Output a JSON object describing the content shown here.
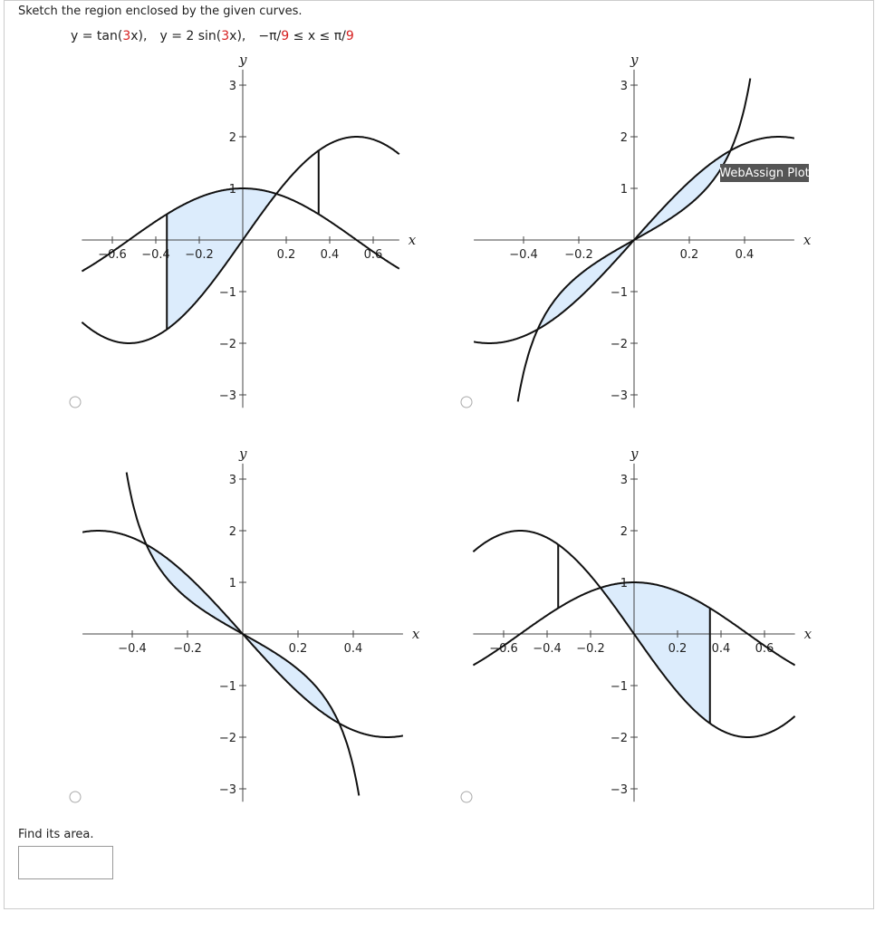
{
  "prompt": "Sketch the region enclosed by the given curves.",
  "equation": [
    "y = tan(",
    "3",
    "x),",
    "y = 2 sin(",
    "3",
    "x),",
    "−π/",
    "9",
    " ≤ x ≤ π/",
    "9"
  ],
  "plots": [
    {
      "x_label": "x",
      "y_label": "y",
      "xticks": [
        {
          "value": -0.6,
          "label": "−0.6"
        },
        {
          "value": -0.4,
          "label": "−0.4"
        },
        {
          "value": -0.2,
          "label": "−0.2"
        },
        0.2,
        0.4,
        0.6
      ],
      "yticks": [
        {
          "value": -3,
          "label": "−3"
        },
        {
          "value": -2,
          "label": "−2"
        },
        {
          "value": -1,
          "label": "−1"
        },
        1,
        2,
        3
      ]
    },
    {
      "x_label": "x",
      "y_label": "y",
      "xticks": [
        {
          "value": -0.4,
          "label": "−0.4"
        },
        {
          "value": -0.2,
          "label": "−0.2"
        },
        0.2,
        0.4
      ],
      "yticks": [
        {
          "value": -3,
          "label": "−3"
        },
        {
          "value": -2,
          "label": "−2"
        },
        {
          "value": -1,
          "label": "−1"
        },
        1,
        2,
        3
      ]
    },
    {
      "x_label": "x",
      "y_label": "y",
      "xticks": [
        {
          "value": -0.4,
          "label": "−0.4"
        },
        {
          "value": -0.2,
          "label": "−0.2"
        },
        0.2,
        0.4
      ],
      "yticks": [
        {
          "value": -3,
          "label": "−3"
        },
        {
          "value": -2,
          "label": "−2"
        },
        {
          "value": -1,
          "label": "−1"
        },
        1,
        2,
        3
      ]
    },
    {
      "x_label": "x",
      "y_label": "y",
      "xticks": [
        {
          "value": -0.6,
          "label": "−0.6"
        },
        {
          "value": -0.4,
          "label": "−0.4"
        },
        {
          "value": -0.2,
          "label": "−0.2"
        },
        0.2,
        0.4,
        0.6
      ],
      "yticks": [
        {
          "value": -3,
          "label": "−3"
        },
        {
          "value": -2,
          "label": "−2"
        },
        {
          "value": -1,
          "label": "−1"
        },
        1,
        2,
        3
      ]
    }
  ],
  "tooltip": "WebAssign Plot",
  "find_area": "Find its area."
}
